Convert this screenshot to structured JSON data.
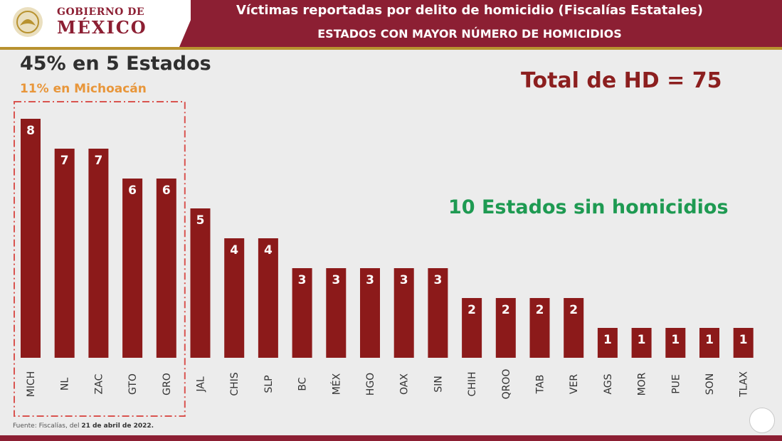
{
  "header": {
    "gov_line1": "GOBIERNO DE",
    "gov_line2": "MÉXICO",
    "title": "Víctimas reportadas por delito de homicidio (Fiscalías Estatales)",
    "subtitle": "ESTADOS CON MAYOR NÚMERO DE HOMICIDIOS"
  },
  "annotations": {
    "headline": "45% en 5 Estados",
    "subheadline": "11% en Michoacán",
    "total": "Total de HD = 75",
    "no_homicides": "10 Estados sin homicidios"
  },
  "footer": {
    "source_prefix": "Fuente: Fiscalías, del ",
    "source_date": "21 de abril de 2022."
  },
  "colors": {
    "bar": "#8c1a1a",
    "header": "#8c1f33",
    "accent_orange": "#e8963a",
    "accent_green": "#1e9a52",
    "highlight_box": "#d9534f"
  },
  "chart_data": {
    "type": "bar",
    "categories": [
      "MICH",
      "NL",
      "ZAC",
      "GTO",
      "GRO",
      "JAL",
      "CHIS",
      "SLP",
      "BC",
      "MÉX",
      "HGO",
      "OAX",
      "SIN",
      "CHIH",
      "QROO",
      "TAB",
      "VER",
      "AGS",
      "MOR",
      "PUE",
      "SON",
      "TLAX"
    ],
    "values": [
      8,
      7,
      7,
      6,
      6,
      5,
      4,
      4,
      3,
      3,
      3,
      3,
      3,
      2,
      2,
      2,
      2,
      1,
      1,
      1,
      1,
      1
    ],
    "highlighted_categories": [
      "MICH",
      "NL",
      "ZAC",
      "GTO",
      "GRO"
    ],
    "value_labels": "inside top of bar",
    "grid": false,
    "legend": "none"
  }
}
